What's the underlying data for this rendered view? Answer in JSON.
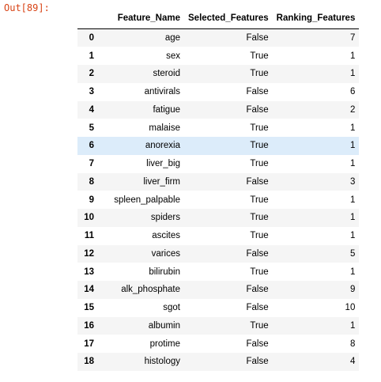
{
  "output": {
    "prompt": "Out[89]:"
  },
  "table": {
    "columns": [
      "",
      "Feature_Name",
      "Selected_Features",
      "Ranking_Features"
    ],
    "rows": [
      {
        "index": "0",
        "feature": "age",
        "selected": "False",
        "rank": "7"
      },
      {
        "index": "1",
        "feature": "sex",
        "selected": "True",
        "rank": "1"
      },
      {
        "index": "2",
        "feature": "steroid",
        "selected": "True",
        "rank": "1"
      },
      {
        "index": "3",
        "feature": "antivirals",
        "selected": "False",
        "rank": "6"
      },
      {
        "index": "4",
        "feature": "fatigue",
        "selected": "False",
        "rank": "2"
      },
      {
        "index": "5",
        "feature": "malaise",
        "selected": "True",
        "rank": "1"
      },
      {
        "index": "6",
        "feature": "anorexia",
        "selected": "True",
        "rank": "1"
      },
      {
        "index": "7",
        "feature": "liver_big",
        "selected": "True",
        "rank": "1"
      },
      {
        "index": "8",
        "feature": "liver_firm",
        "selected": "False",
        "rank": "3"
      },
      {
        "index": "9",
        "feature": "spleen_palpable",
        "selected": "True",
        "rank": "1"
      },
      {
        "index": "10",
        "feature": "spiders",
        "selected": "True",
        "rank": "1"
      },
      {
        "index": "11",
        "feature": "ascites",
        "selected": "True",
        "rank": "1"
      },
      {
        "index": "12",
        "feature": "varices",
        "selected": "False",
        "rank": "5"
      },
      {
        "index": "13",
        "feature": "bilirubin",
        "selected": "True",
        "rank": "1"
      },
      {
        "index": "14",
        "feature": "alk_phosphate",
        "selected": "False",
        "rank": "9"
      },
      {
        "index": "15",
        "feature": "sgot",
        "selected": "False",
        "rank": "10"
      },
      {
        "index": "16",
        "feature": "albumin",
        "selected": "True",
        "rank": "1"
      },
      {
        "index": "17",
        "feature": "protime",
        "selected": "False",
        "rank": "8"
      },
      {
        "index": "18",
        "feature": "histology",
        "selected": "False",
        "rank": "4"
      }
    ],
    "highlighted_row_index": "6"
  },
  "colors": {
    "prompt": "#d84315",
    "row_stripe": "#f5f5f5",
    "row_hover": "#dcecfa",
    "header_rule": "#000000"
  }
}
